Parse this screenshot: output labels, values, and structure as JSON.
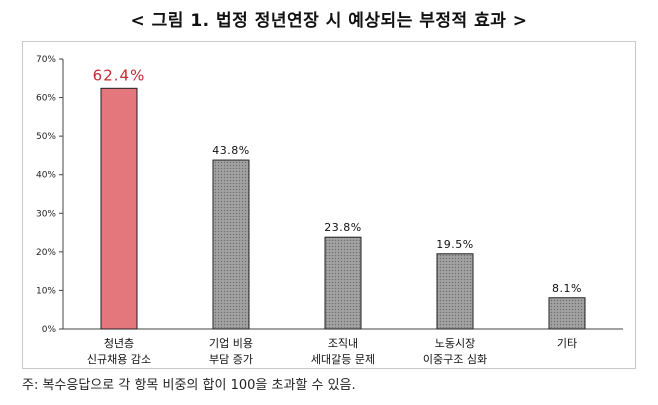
{
  "title": "< 그림 1. 법정 정년연장 시 예상되는 부정적 효과 >",
  "note": "주: 복수응답으로 각 항목 비중의 합이 100을 초과할 수 있음.",
  "colors": {
    "highlight": "#e4777b",
    "highlight_label": "#c42a31",
    "bar": "#9a9a9a",
    "bar_border": "#222222",
    "axis": "#444444"
  },
  "chart_data": {
    "type": "bar",
    "title": "",
    "xlabel": "",
    "ylabel": "",
    "ylim": [
      0,
      70
    ],
    "yticks": [
      "0%",
      "10%",
      "20%",
      "30%",
      "40%",
      "50%",
      "60%",
      "70%"
    ],
    "grid": false,
    "categories": [
      [
        "청년층",
        "신규채용 감소"
      ],
      [
        "기업 비용",
        "부담 증가"
      ],
      [
        "조직내",
        "세대갈등 문제"
      ],
      [
        "노동시장",
        "이중구조 심화"
      ],
      [
        "기타"
      ]
    ],
    "values": [
      62.4,
      43.8,
      23.8,
      19.5,
      8.1
    ],
    "value_labels": [
      "62.4%",
      "43.8%",
      "23.8%",
      "19.5%",
      "8.1%"
    ],
    "highlight_index": 0
  }
}
